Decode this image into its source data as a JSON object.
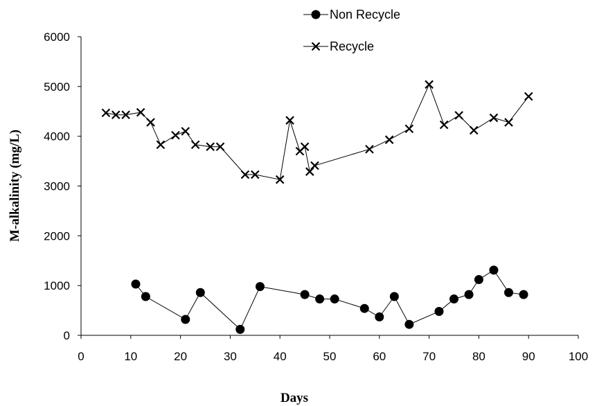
{
  "chart_data": {
    "type": "line",
    "title": "",
    "xlabel": "Days",
    "ylabel": "M-alkalinity (mg/L)",
    "xlim": [
      0,
      100
    ],
    "ylim": [
      0,
      6000
    ],
    "x_ticks": [
      0,
      10,
      20,
      30,
      40,
      50,
      60,
      70,
      80,
      90,
      100
    ],
    "y_ticks": [
      0,
      1000,
      2000,
      3000,
      4000,
      5000,
      6000
    ],
    "grid": false,
    "legend_position": "top-center",
    "series": [
      {
        "name": "Non Recycle",
        "marker": "circle",
        "color": "#000000",
        "points": [
          [
            11,
            1030
          ],
          [
            13,
            780
          ],
          [
            21,
            320
          ],
          [
            24,
            860
          ],
          [
            32,
            120
          ],
          [
            36,
            980
          ],
          [
            45,
            820
          ],
          [
            48,
            730
          ],
          [
            51,
            730
          ],
          [
            57,
            540
          ],
          [
            60,
            370
          ],
          [
            63,
            780
          ],
          [
            66,
            220
          ],
          [
            72,
            480
          ],
          [
            75,
            730
          ],
          [
            78,
            820
          ],
          [
            80,
            1120
          ],
          [
            83,
            1310
          ],
          [
            86,
            860
          ],
          [
            89,
            820
          ]
        ]
      },
      {
        "name": "Recycle",
        "marker": "x",
        "color": "#000000",
        "points": [
          [
            5,
            4470
          ],
          [
            7,
            4430
          ],
          [
            9,
            4430
          ],
          [
            12,
            4480
          ],
          [
            14,
            4280
          ],
          [
            16,
            3830
          ],
          [
            19,
            4020
          ],
          [
            21,
            4100
          ],
          [
            23,
            3830
          ],
          [
            26,
            3790
          ],
          [
            28,
            3790
          ],
          [
            33,
            3230
          ],
          [
            35,
            3230
          ],
          [
            40,
            3130
          ],
          [
            42,
            4320
          ],
          [
            44,
            3700
          ],
          [
            45,
            3790
          ],
          [
            46,
            3290
          ],
          [
            47,
            3410
          ],
          [
            58,
            3740
          ],
          [
            62,
            3930
          ],
          [
            66,
            4150
          ],
          [
            70,
            5040
          ],
          [
            73,
            4230
          ],
          [
            76,
            4420
          ],
          [
            79,
            4120
          ],
          [
            83,
            4370
          ],
          [
            86,
            4280
          ],
          [
            90,
            4800
          ]
        ]
      }
    ]
  }
}
